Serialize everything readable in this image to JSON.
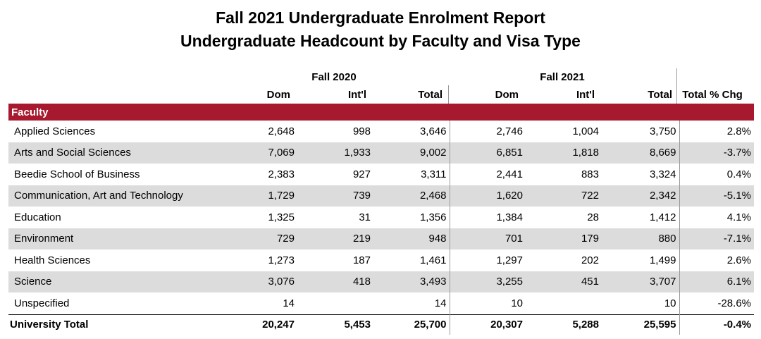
{
  "report": {
    "title_line1": "Fall 2021 Undergraduate Enrolment Report",
    "title_line2": "Undergraduate Headcount by Faculty and Visa Type"
  },
  "groups": {
    "fall2020": "Fall 2020",
    "fall2021": "Fall 2021"
  },
  "columns": {
    "dom1": "Dom",
    "intl1": "Int'l",
    "total1": "Total",
    "dom2": "Dom",
    "intl2": "Int'l",
    "total2": "Total",
    "pct": "Total % Chg"
  },
  "section_label": "Faculty",
  "rows": [
    {
      "name": "Applied Sciences",
      "d20": "2,648",
      "i20": "998",
      "t20": "3,646",
      "d21": "2,746",
      "i21": "1,004",
      "t21": "3,750",
      "chg": "2.8%"
    },
    {
      "name": "Arts and Social Sciences",
      "d20": "7,069",
      "i20": "1,933",
      "t20": "9,002",
      "d21": "6,851",
      "i21": "1,818",
      "t21": "8,669",
      "chg": "-3.7%"
    },
    {
      "name": "Beedie School of Business",
      "d20": "2,383",
      "i20": "927",
      "t20": "3,311",
      "d21": "2,441",
      "i21": "883",
      "t21": "3,324",
      "chg": "0.4%"
    },
    {
      "name": "Communication, Art and Technology",
      "d20": "1,729",
      "i20": "739",
      "t20": "2,468",
      "d21": "1,620",
      "i21": "722",
      "t21": "2,342",
      "chg": "-5.1%"
    },
    {
      "name": "Education",
      "d20": "1,325",
      "i20": "31",
      "t20": "1,356",
      "d21": "1,384",
      "i21": "28",
      "t21": "1,412",
      "chg": "4.1%"
    },
    {
      "name": "Environment",
      "d20": "729",
      "i20": "219",
      "t20": "948",
      "d21": "701",
      "i21": "179",
      "t21": "880",
      "chg": "-7.1%"
    },
    {
      "name": "Health Sciences",
      "d20": "1,273",
      "i20": "187",
      "t20": "1,461",
      "d21": "1,297",
      "i21": "202",
      "t21": "1,499",
      "chg": "2.6%"
    },
    {
      "name": "Science",
      "d20": "3,076",
      "i20": "418",
      "t20": "3,493",
      "d21": "3,255",
      "i21": "451",
      "t21": "3,707",
      "chg": "6.1%"
    },
    {
      "name": "Unspecified",
      "d20": "14",
      "i20": "",
      "t20": "14",
      "d21": "10",
      "i21": "",
      "t21": "10",
      "chg": "-28.6%"
    }
  ],
  "total": {
    "name": "University Total",
    "d20": "20,247",
    "i20": "5,453",
    "t20": "25,700",
    "d21": "20,307",
    "i21": "5,288",
    "t21": "25,595",
    "chg": "-0.4%"
  }
}
